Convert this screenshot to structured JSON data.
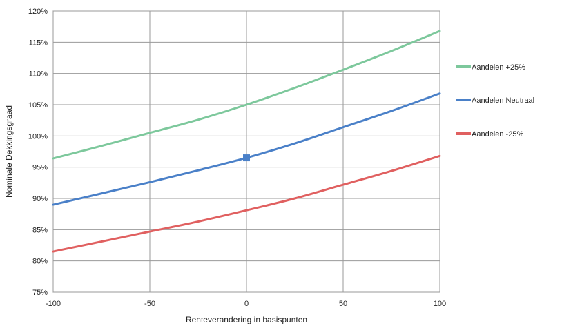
{
  "chart_data": {
    "type": "line",
    "title": "",
    "xlabel": "Renteverandering in basispunten",
    "ylabel": "Nominale Dekkingsgraad",
    "xlim": [
      -100,
      100
    ],
    "ylim": [
      75,
      120
    ],
    "x_ticks": [
      -100,
      -50,
      0,
      50,
      100
    ],
    "x_tick_labels": [
      "-100",
      "-50",
      "0",
      "50",
      "100"
    ],
    "y_ticks": [
      75,
      80,
      85,
      90,
      95,
      100,
      105,
      110,
      115,
      120
    ],
    "y_tick_labels": [
      "75%",
      "80%",
      "85%",
      "90%",
      "95%",
      "100%",
      "105%",
      "110%",
      "115%",
      "120%"
    ],
    "grid": true,
    "legend_position": "right",
    "series": [
      {
        "name": "Aandelen +25%",
        "color": "#7dc89c",
        "x": [
          -100,
          -75,
          -50,
          -25,
          0,
          25,
          50,
          75,
          100
        ],
        "values": [
          96.4,
          98.4,
          100.5,
          102.6,
          105.0,
          107.7,
          110.6,
          113.6,
          116.8
        ]
      },
      {
        "name": "Aandelen Neutraal",
        "color": "#4a80c8",
        "x": [
          -100,
          -75,
          -50,
          -25,
          0,
          25,
          50,
          75,
          100
        ],
        "values": [
          89.0,
          90.8,
          92.6,
          94.5,
          96.5,
          98.8,
          101.4,
          104.0,
          106.8
        ]
      },
      {
        "name": "Aandelen -25%",
        "color": "#e06060",
        "x": [
          -100,
          -75,
          -50,
          -25,
          0,
          25,
          50,
          75,
          100
        ],
        "values": [
          81.5,
          83.1,
          84.7,
          86.3,
          88.1,
          90.0,
          92.2,
          94.4,
          96.8
        ]
      }
    ],
    "annotations": [
      {
        "type": "marker",
        "series": "Aandelen Neutraal",
        "shape": "square",
        "x": 0,
        "y": 96.5,
        "color": "#4a80c8"
      }
    ]
  }
}
